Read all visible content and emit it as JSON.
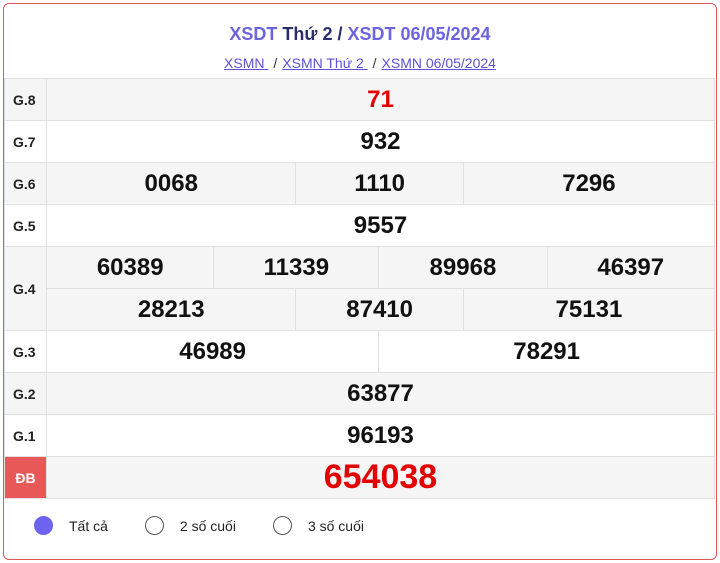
{
  "header": {
    "title_a": "XSDT",
    "title_b": " Thứ 2 / ",
    "title_c": "XSDT 06/05/2024"
  },
  "breadcrumb": [
    "XSMN ",
    "XSMN Thứ 2 ",
    "XSMN 06/05/2024"
  ],
  "prizes": {
    "g8": {
      "label": "G.8",
      "values": [
        "71"
      ]
    },
    "g7": {
      "label": "G.7",
      "values": [
        "932"
      ]
    },
    "g6": {
      "label": "G.6",
      "values": [
        "0068",
        "1110",
        "7296"
      ]
    },
    "g5": {
      "label": "G.5",
      "values": [
        "9557"
      ]
    },
    "g4": {
      "label": "G.4",
      "values": [
        "60389",
        "11339",
        "89968",
        "46397",
        "28213",
        "87410",
        "75131"
      ]
    },
    "g3": {
      "label": "G.3",
      "values": [
        "46989",
        "78291"
      ]
    },
    "g2": {
      "label": "G.2",
      "values": [
        "63877"
      ]
    },
    "g1": {
      "label": "G.1",
      "values": [
        "96193"
      ]
    },
    "db": {
      "label": "ĐB",
      "values": [
        "654038"
      ]
    }
  },
  "filter": {
    "options": [
      "Tất cả",
      "2 số cuối",
      "3 số cuối"
    ],
    "selected": "Tất cả"
  },
  "colors": {
    "accent": "#6c63f0",
    "special": "#e30000",
    "border": "#e05555"
  }
}
